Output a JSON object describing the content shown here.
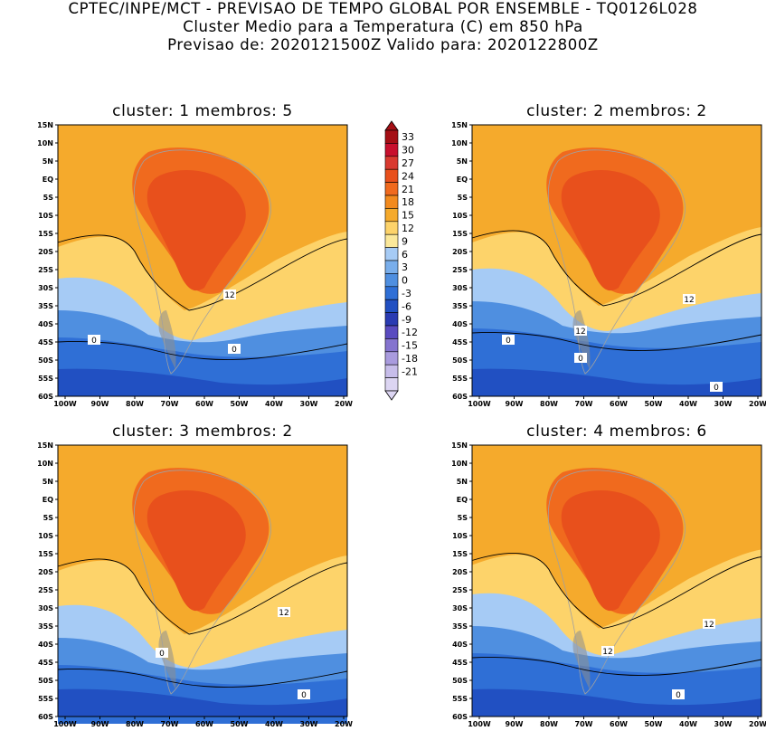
{
  "header": {
    "line1": "CPTEC/INPE/MCT - PREVISAO DE TEMPO GLOBAL POR ENSEMBLE - TQ0126L028",
    "line2": "Cluster Medio para a Temperatura (C) em 850 hPa",
    "line3": "Previsao de: 2020121500Z   Valido para: 2020122800Z"
  },
  "panels": [
    {
      "title": "cluster: 1   membros: 5",
      "contour_labels": [
        "12",
        "0",
        "0"
      ]
    },
    {
      "title": "cluster: 2   membros: 2",
      "contour_labels": [
        "12",
        "12",
        "0",
        "0",
        "0"
      ]
    },
    {
      "title": "cluster: 3   membros: 2",
      "contour_labels": [
        "12",
        "0",
        "0"
      ]
    },
    {
      "title": "cluster: 4   membros: 6",
      "contour_labels": [
        "12",
        "12",
        "0"
      ]
    }
  ],
  "lat_ticks": [
    "15N",
    "10N",
    "5N",
    "EQ",
    "5S",
    "10S",
    "15S",
    "20S",
    "25S",
    "30S",
    "35S",
    "40S",
    "45S",
    "50S",
    "55S",
    "60S"
  ],
  "lon_ticks": [
    "100W",
    "90W",
    "80W",
    "70W",
    "60W",
    "50W",
    "40W",
    "30W",
    "20W"
  ],
  "colorbar": {
    "labels": [
      "33",
      "30",
      "27",
      "24",
      "21",
      "18",
      "15",
      "12",
      "9",
      "6",
      "3",
      "0",
      "-3",
      "-6",
      "-9",
      "-12",
      "-15",
      "-18",
      "-21"
    ],
    "colors": [
      "#a50f15",
      "#c8102e",
      "#d93a30",
      "#e8501c",
      "#f06a1e",
      "#f28a1e",
      "#f5aa2c",
      "#fdd36a",
      "#fbe89a",
      "#a6cbf5",
      "#79aeeb",
      "#4f8fe0",
      "#2f6fd6",
      "#2150c2",
      "#2a3bb2",
      "#5a4bc0",
      "#8574cf",
      "#a99bde",
      "#c7bdea",
      "#dcd5f2"
    ]
  }
}
